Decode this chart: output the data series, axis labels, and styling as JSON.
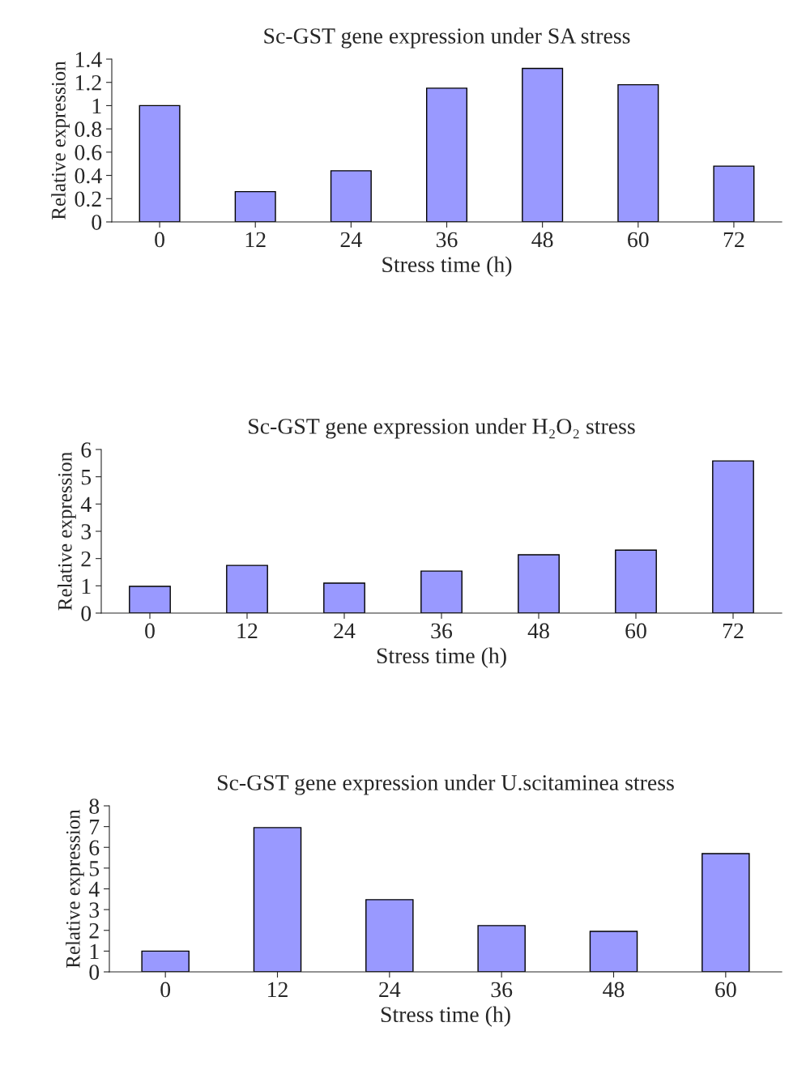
{
  "chart_data": [
    {
      "type": "bar",
      "title": "Sc-GST gene expression under SA stress",
      "xlabel": "Stress time (h)",
      "ylabel": "Relative expression",
      "categories": [
        "0",
        "12",
        "24",
        "36",
        "48",
        "60",
        "72"
      ],
      "values": [
        1.0,
        0.26,
        0.44,
        1.15,
        1.32,
        1.18,
        0.48
      ],
      "color": "#9999ff",
      "ylim": [
        0,
        1.4
      ],
      "yticks": [
        0,
        0.2,
        0.4,
        0.6,
        0.8,
        {
          "value": 1,
          "label": "1"
        },
        1.2,
        1.4
      ]
    },
    {
      "type": "bar",
      "title": "Sc-GST gene expression under H₂O₂ stress",
      "xlabel": "Stress time (h)",
      "ylabel": "Relative expression",
      "categories": [
        "0",
        "12",
        "24",
        "36",
        "48",
        "60",
        "72"
      ],
      "values": [
        0.98,
        1.75,
        1.1,
        1.54,
        2.14,
        2.31,
        5.58
      ],
      "color": "#9999ff",
      "ylim": [
        0,
        6
      ],
      "yticks": [
        0,
        1,
        2,
        3,
        4,
        5,
        6
      ]
    },
    {
      "type": "bar",
      "title": "Sc-GST gene expression under U.scitaminea stress",
      "xlabel": "Stress time (h)",
      "ylabel": "Relative expression",
      "categories": [
        "0",
        "12",
        "24",
        "36",
        "48",
        "60"
      ],
      "values": [
        1.0,
        6.95,
        3.48,
        2.23,
        1.95,
        5.7
      ],
      "color": "#9999ff",
      "ylim": [
        0,
        8
      ],
      "yticks": [
        0,
        1,
        2,
        3,
        4,
        5,
        6,
        7,
        8
      ]
    }
  ]
}
